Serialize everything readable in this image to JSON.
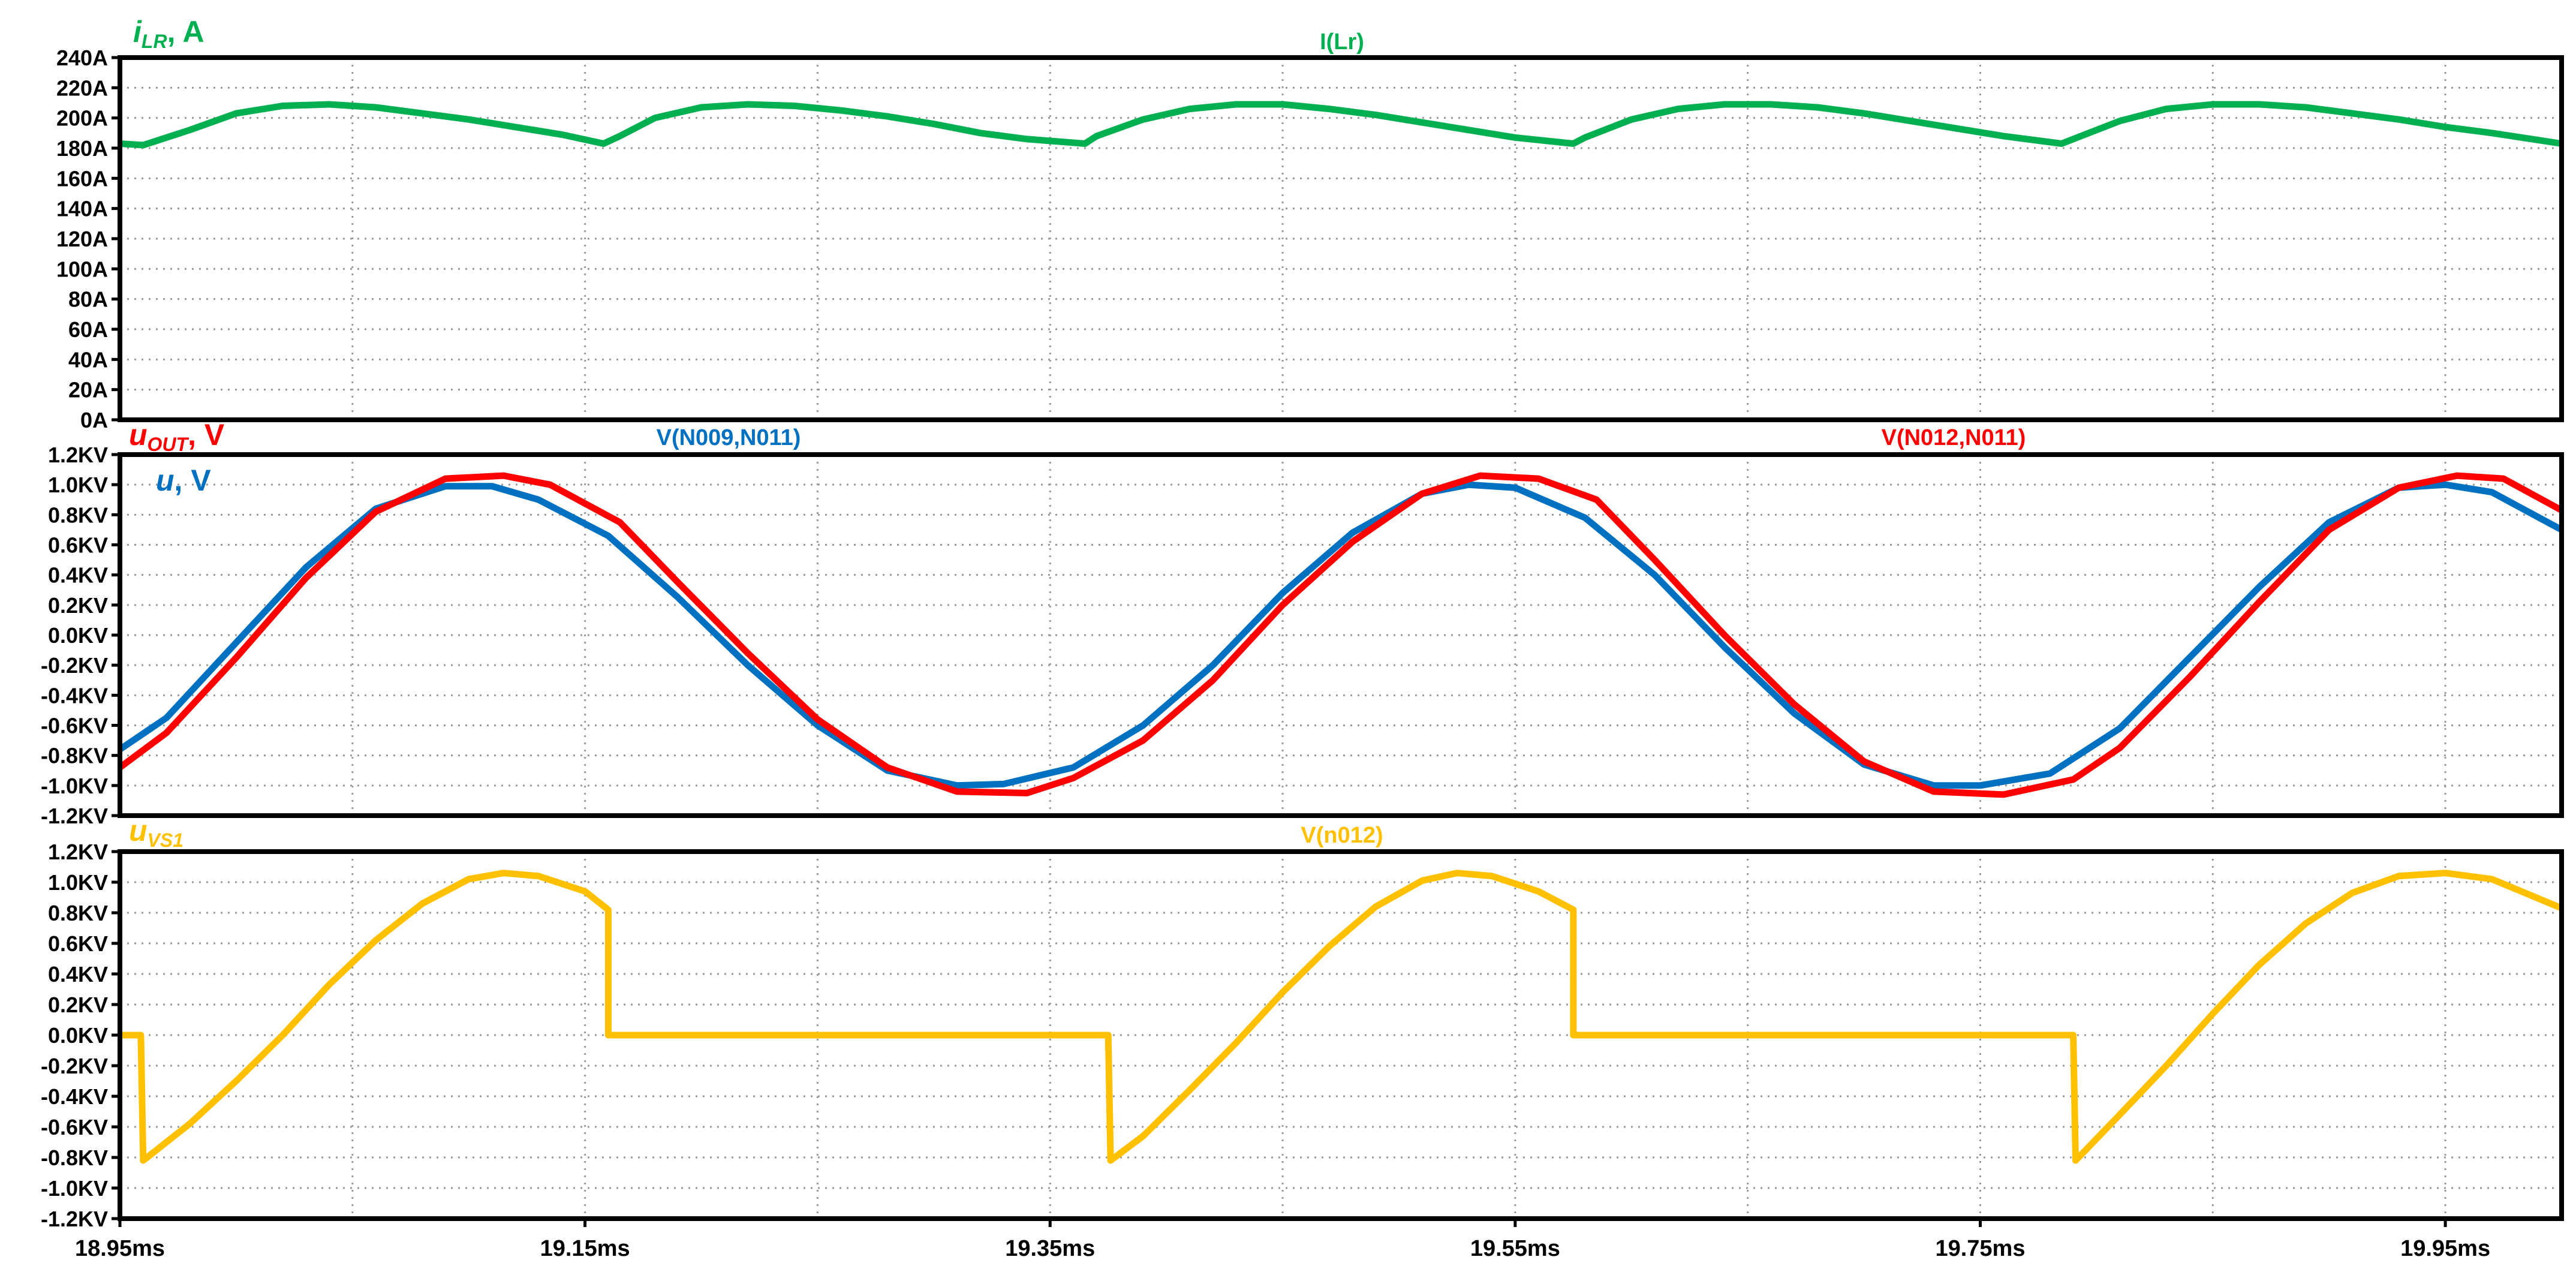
{
  "chart_data": [
    {
      "type": "line",
      "panel_labels": [
        {
          "text": "i",
          "subscript": "LR",
          "suffix": ", A",
          "color": "#00b050"
        }
      ],
      "trace_labels": [
        {
          "text": "I(Lr)",
          "color": "#00b050"
        }
      ],
      "y_ticks": [
        "240A",
        "220A",
        "200A",
        "180A",
        "160A",
        "140A",
        "120A",
        "100A",
        "80A",
        "60A",
        "40A",
        "20A",
        "0A"
      ],
      "ylim": [
        0,
        240
      ],
      "xlim": [
        18.95,
        20.0
      ],
      "grid": true,
      "series": [
        {
          "name": "I(Lr)",
          "color": "#00b050",
          "x": [
            18.95,
            18.96,
            18.98,
            19.0,
            19.02,
            19.04,
            19.06,
            19.08,
            19.1,
            19.12,
            19.14,
            19.158,
            19.165,
            19.18,
            19.2,
            19.22,
            19.24,
            19.26,
            19.28,
            19.3,
            19.32,
            19.34,
            19.365,
            19.37,
            19.39,
            19.41,
            19.43,
            19.45,
            19.47,
            19.49,
            19.51,
            19.53,
            19.55,
            19.575,
            19.58,
            19.6,
            19.62,
            19.64,
            19.66,
            19.68,
            19.7,
            19.72,
            19.74,
            19.76,
            19.785,
            19.79,
            19.81,
            19.83,
            19.85,
            19.87,
            19.89,
            19.91,
            19.93,
            19.95,
            19.97,
            20.0
          ],
          "values": [
            183,
            182,
            192,
            203,
            208,
            209,
            207,
            203,
            199,
            194,
            189,
            183,
            188,
            200,
            207,
            209,
            208,
            205,
            201,
            196,
            190,
            186,
            183,
            188,
            199,
            206,
            209,
            209,
            206,
            202,
            197,
            192,
            187,
            183,
            187,
            199,
            206,
            209,
            209,
            207,
            203,
            198,
            193,
            188,
            183,
            186,
            198,
            206,
            209,
            209,
            207,
            203,
            199,
            194,
            190,
            183
          ]
        }
      ]
    },
    {
      "type": "line",
      "panel_labels": [
        {
          "text": "u",
          "subscript": "OUT",
          "suffix": ", V",
          "color": "#ff0000"
        },
        {
          "text": "u",
          "subscript": "",
          "suffix": ", V",
          "color": "#0070c0"
        }
      ],
      "trace_labels": [
        {
          "text": "V(N009,N011)",
          "color": "#0070c0"
        },
        {
          "text": "V(N012,N011)",
          "color": "#ff0000"
        }
      ],
      "y_ticks": [
        "1.2KV",
        "1.0KV",
        "0.8KV",
        "0.6KV",
        "0.4KV",
        "0.2KV",
        "0.0KV",
        "-0.2KV",
        "-0.4KV",
        "-0.6KV",
        "-0.8KV",
        "-1.0KV",
        "-1.2KV"
      ],
      "ylim": [
        -1.2,
        1.2
      ],
      "xlim": [
        18.95,
        20.0
      ],
      "grid": true,
      "series": [
        {
          "name": "V(N009,N011)",
          "color": "#0070c0",
          "x": [
            18.95,
            18.97,
            19.0,
            19.03,
            19.06,
            19.09,
            19.11,
            19.13,
            19.16,
            19.19,
            19.22,
            19.25,
            19.28,
            19.31,
            19.33,
            19.36,
            19.39,
            19.42,
            19.45,
            19.48,
            19.51,
            19.53,
            19.55,
            19.58,
            19.61,
            19.64,
            19.67,
            19.7,
            19.73,
            19.75,
            19.78,
            19.81,
            19.84,
            19.87,
            19.9,
            19.93,
            19.95,
            19.97,
            20.0
          ],
          "values": [
            -0.76,
            -0.55,
            -0.05,
            0.45,
            0.84,
            0.99,
            0.99,
            0.9,
            0.66,
            0.25,
            -0.2,
            -0.6,
            -0.9,
            -1.0,
            -0.99,
            -0.88,
            -0.6,
            -0.2,
            0.28,
            0.68,
            0.94,
            1.0,
            0.98,
            0.78,
            0.4,
            -0.08,
            -0.52,
            -0.86,
            -1.0,
            -1.0,
            -0.92,
            -0.62,
            -0.15,
            0.32,
            0.75,
            0.98,
            1.0,
            0.95,
            0.7
          ]
        },
        {
          "name": "V(N012,N011)",
          "color": "#ff0000",
          "x": [
            18.95,
            18.97,
            19.0,
            19.03,
            19.06,
            19.09,
            19.115,
            19.135,
            19.165,
            19.19,
            19.22,
            19.25,
            19.28,
            19.31,
            19.34,
            19.36,
            19.39,
            19.42,
            19.45,
            19.48,
            19.51,
            19.535,
            19.56,
            19.585,
            19.61,
            19.64,
            19.67,
            19.7,
            19.73,
            19.76,
            19.79,
            19.81,
            19.84,
            19.87,
            19.9,
            19.93,
            19.955,
            19.975,
            20.0
          ],
          "values": [
            -0.88,
            -0.65,
            -0.15,
            0.38,
            0.82,
            1.04,
            1.06,
            1.0,
            0.75,
            0.35,
            -0.12,
            -0.56,
            -0.88,
            -1.04,
            -1.05,
            -0.95,
            -0.7,
            -0.3,
            0.2,
            0.62,
            0.94,
            1.06,
            1.04,
            0.9,
            0.5,
            0.0,
            -0.46,
            -0.84,
            -1.04,
            -1.06,
            -0.96,
            -0.75,
            -0.28,
            0.22,
            0.7,
            0.98,
            1.06,
            1.04,
            0.83
          ]
        }
      ]
    },
    {
      "type": "line",
      "panel_labels": [
        {
          "text": "u",
          "subscript": "VS1",
          "suffix": "",
          "color": "#ffc000"
        }
      ],
      "trace_labels": [
        {
          "text": "V(n012)",
          "color": "#ffc000"
        }
      ],
      "y_ticks": [
        "1.2KV",
        "1.0KV",
        "0.8KV",
        "0.6KV",
        "0.4KV",
        "0.2KV",
        "0.0KV",
        "-0.2KV",
        "-0.4KV",
        "-0.6KV",
        "-0.8KV",
        "-1.0KV",
        "-1.2KV"
      ],
      "ylim": [
        -1.2,
        1.2
      ],
      "xlim": [
        18.95,
        20.0
      ],
      "grid": true,
      "x_ticks": [
        "18.95ms",
        "19.15ms",
        "19.35ms",
        "19.55ms",
        "19.75ms",
        "19.95ms"
      ],
      "x_tick_values": [
        18.95,
        19.15,
        19.35,
        19.55,
        19.75,
        19.95
      ],
      "series": [
        {
          "name": "V(n012)",
          "color": "#ffc000",
          "x": [
            18.95,
            18.959,
            18.96,
            18.98,
            19.0,
            19.02,
            19.04,
            19.06,
            19.08,
            19.1,
            19.115,
            19.13,
            19.15,
            19.16,
            19.16,
            19.375,
            19.376,
            19.39,
            19.41,
            19.43,
            19.45,
            19.47,
            19.49,
            19.51,
            19.525,
            19.54,
            19.56,
            19.575,
            19.575,
            19.79,
            19.791,
            19.81,
            19.83,
            19.85,
            19.87,
            19.89,
            19.91,
            19.93,
            19.95,
            19.97,
            20.0
          ],
          "values": [
            0.0,
            0.0,
            -0.82,
            -0.58,
            -0.3,
            0.0,
            0.33,
            0.62,
            0.86,
            1.02,
            1.06,
            1.04,
            0.94,
            0.82,
            0.0,
            0.0,
            -0.82,
            -0.66,
            -0.36,
            -0.05,
            0.28,
            0.58,
            0.84,
            1.01,
            1.06,
            1.04,
            0.94,
            0.82,
            0.0,
            0.0,
            -0.82,
            -0.52,
            -0.2,
            0.14,
            0.46,
            0.73,
            0.93,
            1.04,
            1.06,
            1.02,
            0.83
          ]
        }
      ]
    }
  ]
}
